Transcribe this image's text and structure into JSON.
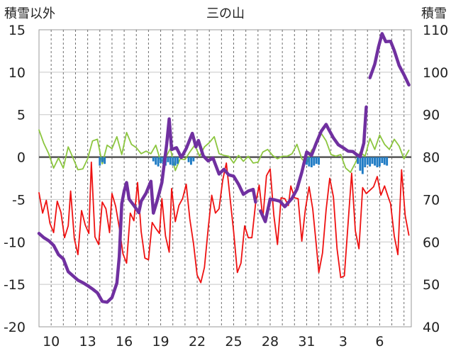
{
  "chart_data": {
    "type": "line",
    "title": "三の山",
    "left_axis_label": "積雪以外",
    "right_axis_label": "積雪",
    "y_left": {
      "min": -20,
      "max": 15,
      "ticks": [
        15,
        10,
        5,
        0,
        -5,
        -10,
        -15,
        -20
      ]
    },
    "y_right": {
      "min": 40,
      "max": 110,
      "ticks": [
        110,
        100,
        90,
        80,
        70,
        60,
        50,
        40
      ]
    },
    "x": {
      "min": 0,
      "max": 30.6,
      "ticks": [
        1,
        4,
        7,
        10,
        13,
        16,
        19,
        22,
        25,
        28,
        31,
        34
      ],
      "tick_labels": [
        "10",
        "13",
        "16",
        "19",
        "22",
        "25",
        "28",
        "31",
        "3",
        "6"
      ],
      "tick_label_positions": [
        1,
        4,
        7,
        10,
        13,
        16,
        19,
        22,
        25,
        28
      ],
      "grid_dashed_every": 1
    },
    "grid": true,
    "colors": {
      "temperature": "#ee1111",
      "wind": "#8cc63f",
      "precip": "#1f7bc4",
      "snow": "#7030a0",
      "zero_line": "#555555"
    },
    "series": [
      {
        "key": "temperature",
        "axis": "left",
        "points": [
          [
            0.0,
            -4.2
          ],
          [
            0.3,
            -6.6
          ],
          [
            0.6,
            -5.1
          ],
          [
            0.9,
            -7.8
          ],
          [
            1.2,
            -8.9
          ],
          [
            1.5,
            -5.2
          ],
          [
            1.8,
            -6.5
          ],
          [
            2.1,
            -9.5
          ],
          [
            2.4,
            -8.1
          ],
          [
            2.6,
            -4.0
          ],
          [
            2.9,
            -9.6
          ],
          [
            3.2,
            -11.5
          ],
          [
            3.5,
            -6.3
          ],
          [
            3.8,
            -8.0
          ],
          [
            4.1,
            -9.0
          ],
          [
            4.3,
            -0.6
          ],
          [
            4.6,
            -9.4
          ],
          [
            4.9,
            -10.3
          ],
          [
            5.2,
            -5.3
          ],
          [
            5.5,
            -6.1
          ],
          [
            5.8,
            -8.9
          ],
          [
            6.0,
            -4.3
          ],
          [
            6.3,
            -5.8
          ],
          [
            6.6,
            -8.3
          ],
          [
            6.9,
            -11.4
          ],
          [
            7.2,
            -12.5
          ],
          [
            7.5,
            -6.6
          ],
          [
            7.8,
            -7.5
          ],
          [
            8.1,
            -3.0
          ],
          [
            8.4,
            -8.8
          ],
          [
            8.7,
            -11.9
          ],
          [
            9.0,
            -12.1
          ],
          [
            9.3,
            -7.7
          ],
          [
            9.6,
            -8.4
          ],
          [
            9.9,
            -9.0
          ],
          [
            10.1,
            -4.9
          ],
          [
            10.4,
            -9.3
          ],
          [
            10.7,
            -11.2
          ],
          [
            10.9,
            -3.7
          ],
          [
            11.2,
            -7.6
          ],
          [
            11.5,
            -5.7
          ],
          [
            11.8,
            -4.9
          ],
          [
            12.1,
            -3.2
          ],
          [
            12.4,
            -7.3
          ],
          [
            12.7,
            -10.2
          ],
          [
            13.0,
            -13.9
          ],
          [
            13.3,
            -14.8
          ],
          [
            13.6,
            -13.0
          ],
          [
            13.9,
            -8.5
          ],
          [
            14.2,
            -4.5
          ],
          [
            14.5,
            -6.6
          ],
          [
            14.8,
            -6.1
          ],
          [
            15.1,
            -2.7
          ],
          [
            15.4,
            -0.7
          ],
          [
            15.7,
            -4.8
          ],
          [
            16.0,
            -8.8
          ],
          [
            16.3,
            -13.6
          ],
          [
            16.6,
            -12.5
          ],
          [
            16.9,
            -8.1
          ],
          [
            17.2,
            -9.5
          ],
          [
            17.5,
            -9.5
          ],
          [
            17.8,
            -5.5
          ],
          [
            18.1,
            -3.3
          ],
          [
            18.4,
            -7.2
          ],
          [
            18.7,
            -2.2
          ],
          [
            19.0,
            -1.4
          ],
          [
            19.3,
            -6.8
          ],
          [
            19.6,
            -10.3
          ],
          [
            19.9,
            -4.8
          ],
          [
            20.2,
            -4.9
          ],
          [
            20.5,
            -5.7
          ],
          [
            20.7,
            -3.4
          ],
          [
            21.0,
            -4.8
          ],
          [
            21.3,
            -4.9
          ],
          [
            21.6,
            -9.9
          ],
          [
            21.9,
            -6.1
          ],
          [
            22.2,
            -3.5
          ],
          [
            22.5,
            -6.1
          ],
          [
            22.8,
            -10.5
          ],
          [
            23.0,
            -13.6
          ],
          [
            23.3,
            -11.3
          ],
          [
            23.6,
            -6.2
          ],
          [
            23.9,
            -2.5
          ],
          [
            24.2,
            -4.7
          ],
          [
            24.5,
            -10.8
          ],
          [
            24.8,
            -14.2
          ],
          [
            25.1,
            -14.0
          ],
          [
            25.4,
            -7.9
          ],
          [
            25.7,
            -1.9
          ],
          [
            26.0,
            -8.7
          ],
          [
            26.3,
            -10.8
          ],
          [
            26.6,
            -3.6
          ],
          [
            26.9,
            -4.3
          ],
          [
            27.2,
            -3.9
          ],
          [
            27.5,
            -3.5
          ],
          [
            27.8,
            -2.3
          ],
          [
            28.1,
            -4.5
          ],
          [
            28.4,
            -3.4
          ],
          [
            28.7,
            -4.7
          ],
          [
            28.9,
            -5.5
          ],
          [
            29.2,
            -9.3
          ],
          [
            29.5,
            -11.5
          ],
          [
            29.8,
            -1.5
          ],
          [
            30.1,
            -6.9
          ],
          [
            30.4,
            -9.2
          ]
        ]
      },
      {
        "key": "wind",
        "axis": "left",
        "points": [
          [
            0.0,
            3.2
          ],
          [
            0.4,
            1.6
          ],
          [
            0.8,
            0.4
          ],
          [
            1.2,
            -1.3
          ],
          [
            1.6,
            -0.1
          ],
          [
            2.0,
            -1.3
          ],
          [
            2.4,
            1.2
          ],
          [
            2.8,
            -0.1
          ],
          [
            3.2,
            -1.5
          ],
          [
            3.6,
            -1.4
          ],
          [
            4.0,
            -0.2
          ],
          [
            4.4,
            1.9
          ],
          [
            4.8,
            2.1
          ],
          [
            5.2,
            -0.8
          ],
          [
            5.6,
            1.4
          ],
          [
            6.0,
            1.0
          ],
          [
            6.4,
            2.4
          ],
          [
            6.8,
            0.3
          ],
          [
            7.2,
            2.9
          ],
          [
            7.6,
            1.5
          ],
          [
            8.0,
            1.1
          ],
          [
            8.4,
            0.4
          ],
          [
            8.8,
            0.7
          ],
          [
            9.2,
            0.4
          ],
          [
            9.6,
            1.4
          ],
          [
            10.0,
            -0.5
          ],
          [
            10.4,
            -0.1
          ],
          [
            10.8,
            1.0
          ],
          [
            11.2,
            -1.6
          ],
          [
            11.6,
            -0.2
          ],
          [
            12.0,
            -0.3
          ],
          [
            12.4,
            0.6
          ],
          [
            12.8,
            1.4
          ],
          [
            13.2,
            0.1
          ],
          [
            13.6,
            1.2
          ],
          [
            14.0,
            1.7
          ],
          [
            14.4,
            2.4
          ],
          [
            14.8,
            0.4
          ],
          [
            15.2,
            0.2
          ],
          [
            15.6,
            0.1
          ],
          [
            16.0,
            -0.7
          ],
          [
            16.4,
            0.2
          ],
          [
            16.8,
            -0.5
          ],
          [
            17.2,
            0.1
          ],
          [
            17.6,
            -0.7
          ],
          [
            18.0,
            -0.6
          ],
          [
            18.4,
            0.6
          ],
          [
            18.8,
            0.9
          ],
          [
            19.2,
            0.2
          ],
          [
            19.6,
            -0.2
          ],
          [
            20.0,
            0.1
          ],
          [
            20.4,
            0.1
          ],
          [
            20.8,
            0.4
          ],
          [
            21.2,
            1.5
          ],
          [
            21.6,
            -0.2
          ],
          [
            22.0,
            -0.8
          ],
          [
            22.4,
            0.8
          ],
          [
            22.8,
            1.4
          ],
          [
            23.2,
            2.8
          ],
          [
            23.6,
            1.9
          ],
          [
            24.0,
            0.3
          ],
          [
            24.4,
            0.1
          ],
          [
            24.8,
            0.3
          ],
          [
            25.2,
            -1.3
          ],
          [
            25.6,
            -1.8
          ],
          [
            26.0,
            -0.7
          ],
          [
            26.4,
            0.6
          ],
          [
            26.8,
            0.1
          ],
          [
            27.2,
            2.2
          ],
          [
            27.6,
            0.9
          ],
          [
            28.0,
            2.6
          ],
          [
            28.4,
            1.5
          ],
          [
            28.8,
            0.9
          ],
          [
            29.2,
            2.1
          ],
          [
            29.6,
            1.3
          ],
          [
            30.0,
            -0.2
          ],
          [
            30.4,
            0.8
          ]
        ]
      },
      {
        "key": "precip",
        "axis": "left",
        "bars": [
          [
            5.0,
            -1.0
          ],
          [
            5.2,
            -0.6
          ],
          [
            5.4,
            -0.8
          ],
          [
            9.4,
            -0.5
          ],
          [
            9.6,
            -0.9
          ],
          [
            9.8,
            -1.1
          ],
          [
            10.0,
            -0.7
          ],
          [
            10.2,
            -0.8
          ],
          [
            10.4,
            -1.0
          ],
          [
            10.6,
            -0.6
          ],
          [
            10.8,
            -0.9
          ],
          [
            11.0,
            -1.0
          ],
          [
            11.2,
            -1.0
          ],
          [
            11.4,
            -0.8
          ],
          [
            12.3,
            -0.6
          ],
          [
            12.5,
            -0.9
          ],
          [
            12.7,
            -0.5
          ],
          [
            22.0,
            -0.9
          ],
          [
            22.2,
            -1.1
          ],
          [
            22.4,
            -1.2
          ],
          [
            22.6,
            -1.0
          ],
          [
            22.8,
            -0.8
          ],
          [
            23.0,
            -0.9
          ],
          [
            26.2,
            -0.8
          ],
          [
            26.4,
            -1.6
          ],
          [
            26.6,
            -2.0
          ],
          [
            26.8,
            -1.2
          ],
          [
            27.0,
            -0.9
          ],
          [
            27.2,
            -1.1
          ],
          [
            27.4,
            -0.8
          ],
          [
            27.6,
            -1.0
          ],
          [
            27.8,
            -1.2
          ],
          [
            28.0,
            -1.1
          ],
          [
            28.2,
            -0.7
          ],
          [
            28.4,
            -0.9
          ],
          [
            28.6,
            -1.0
          ]
        ]
      },
      {
        "key": "snow",
        "axis": "right",
        "points": [
          [
            0.0,
            62.0
          ],
          [
            0.4,
            61.0
          ],
          [
            0.8,
            60.3
          ],
          [
            1.2,
            59.2
          ],
          [
            1.6,
            57.0
          ],
          [
            2.0,
            56.0
          ],
          [
            2.4,
            53.0
          ],
          [
            2.8,
            52.0
          ],
          [
            3.2,
            51.0
          ],
          [
            3.6,
            50.4
          ],
          [
            4.0,
            49.7
          ],
          [
            4.4,
            48.9
          ],
          [
            4.8,
            48.0
          ],
          [
            5.2,
            46.0
          ],
          [
            5.6,
            45.8
          ],
          [
            6.0,
            46.9
          ],
          [
            6.4,
            50.3
          ],
          [
            6.6,
            56.5
          ],
          [
            6.8,
            69.0
          ],
          [
            7.0,
            72.0
          ],
          [
            7.2,
            74.0
          ],
          [
            7.4,
            70.1
          ],
          [
            7.8,
            68.6
          ],
          [
            8.2,
            66.9
          ],
          [
            8.4,
            69.6
          ],
          [
            8.8,
            71.5
          ],
          [
            9.2,
            74.3
          ],
          [
            9.4,
            66.8
          ],
          [
            9.7,
            69.6
          ],
          [
            10.1,
            74.0
          ],
          [
            10.5,
            83.1
          ],
          [
            10.7,
            89.0
          ],
          [
            10.9,
            81.8
          ],
          [
            11.3,
            82.2
          ],
          [
            11.7,
            79.9
          ],
          [
            12.1,
            82.0
          ],
          [
            12.6,
            85.6
          ],
          [
            12.9,
            82.4
          ],
          [
            13.1,
            83.9
          ],
          [
            13.5,
            80.3
          ],
          [
            13.9,
            79.1
          ],
          [
            14.3,
            79.8
          ],
          [
            14.8,
            76.0
          ],
          [
            15.2,
            77.1
          ],
          [
            15.6,
            75.8
          ],
          [
            16.0,
            75.5
          ],
          [
            16.4,
            73.6
          ],
          [
            16.8,
            71.2
          ],
          [
            17.2,
            72.0
          ],
          [
            17.6,
            72.4
          ],
          [
            17.8,
            69.4
          ],
          [
            18.2,
            67.3
          ],
          [
            18.6,
            64.8
          ],
          [
            19.0,
            70.1
          ],
          [
            19.4,
            69.9
          ],
          [
            19.8,
            69.6
          ],
          [
            20.2,
            68.3
          ],
          [
            20.8,
            70.3
          ],
          [
            21.2,
            72.4
          ],
          [
            21.6,
            76.4
          ],
          [
            22.0,
            81.2
          ],
          [
            22.4,
            80.4
          ],
          [
            22.8,
            83.4
          ],
          [
            23.2,
            86.1
          ],
          [
            23.6,
            87.7
          ],
          [
            23.8,
            86.6
          ],
          [
            24.2,
            84.5
          ],
          [
            24.6,
            82.9
          ],
          [
            25.0,
            82.2
          ],
          [
            25.4,
            81.4
          ],
          [
            25.8,
            81.3
          ],
          [
            26.1,
            80.6
          ],
          [
            26.4,
            80.1
          ],
          [
            26.7,
            83.3
          ],
          [
            26.9,
            91.8
          ],
          [
            27.2,
            98.7
          ],
          [
            27.6,
            101.9
          ],
          [
            27.9,
            105.9
          ],
          [
            28.2,
            109.1
          ],
          [
            28.5,
            107.2
          ],
          [
            28.9,
            107.3
          ],
          [
            29.2,
            105.1
          ],
          [
            29.6,
            101.6
          ],
          [
            30.0,
            99.4
          ],
          [
            30.4,
            97.0
          ]
        ],
        "gaps": [
          [
            15.8,
            16.4
          ],
          [
            17.9,
            18.0
          ],
          [
            27.05,
            27.1
          ]
        ]
      }
    ]
  }
}
